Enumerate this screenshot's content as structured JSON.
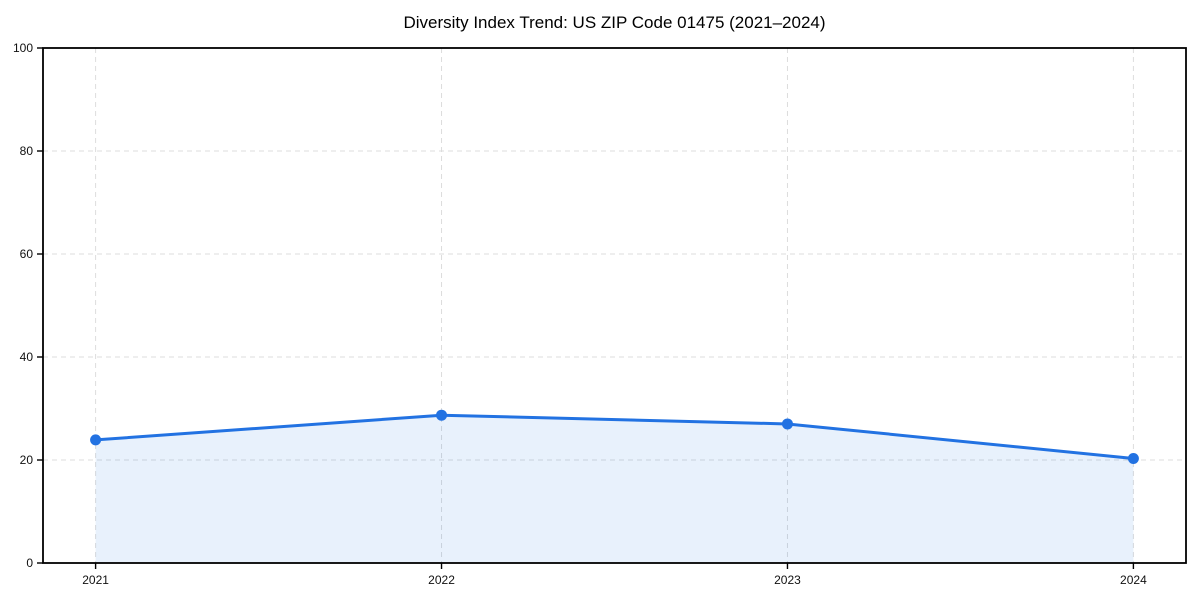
{
  "figure": {
    "background": "#ffffff"
  },
  "chart_data": {
    "type": "area",
    "title": "Diversity Index Trend: US ZIP Code 01475 (2021–2024)",
    "categories": [
      "2021",
      "2022",
      "2023",
      "2024"
    ],
    "series": [
      {
        "name": "Diversity Index",
        "values": [
          23.9,
          28.7,
          27.0,
          20.3
        ]
      }
    ],
    "xlabel": "",
    "ylabel": "",
    "ylim": [
      0,
      100
    ],
    "yticks": [
      0,
      20,
      40,
      60,
      80,
      100
    ],
    "grid": {
      "visible": true,
      "style": "dashed",
      "axes": "both",
      "color": "#dcdcdc"
    },
    "legend": "none",
    "line_color": "#2272e2",
    "marker_color": "#2272e2",
    "fill_opacity": 0.1,
    "spine_color": "#000000"
  }
}
